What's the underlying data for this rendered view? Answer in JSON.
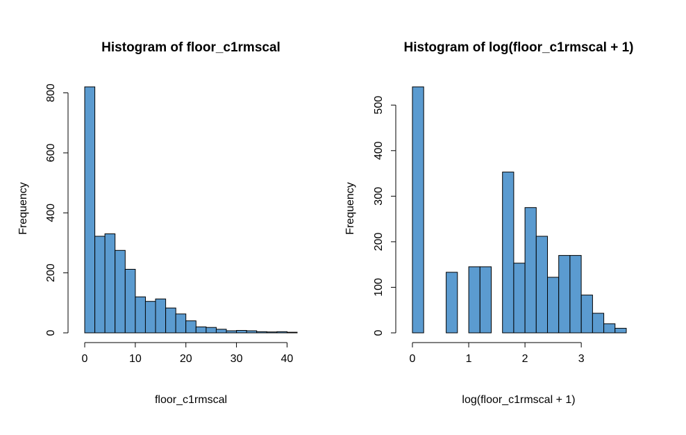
{
  "chart_data": [
    {
      "type": "bar",
      "title": "Histogram of floor_c1rmscal",
      "xlabel": "floor_c1rmscal",
      "ylabel": "Frequency",
      "bin_edges": [
        0,
        2,
        4,
        6,
        8,
        10,
        12,
        14,
        16,
        18,
        20,
        22,
        24,
        26,
        28,
        30,
        32,
        34,
        36,
        38,
        40,
        42
      ],
      "values": [
        820,
        322,
        330,
        275,
        212,
        120,
        105,
        113,
        83,
        63,
        40,
        20,
        18,
        12,
        7,
        8,
        7,
        4,
        3,
        4,
        2
      ],
      "xlim": [
        0,
        42
      ],
      "ylim": [
        0,
        820
      ],
      "x_ticks": [
        0,
        10,
        20,
        30,
        40
      ],
      "x_tick_labels": [
        "0",
        "10",
        "20",
        "30",
        "40"
      ],
      "y_ticks": [
        0,
        200,
        400,
        600,
        800
      ],
      "y_tick_labels": [
        "0",
        "200",
        "400",
        "600",
        "800"
      ],
      "bar_color": "#5b9bd0",
      "grid": false
    },
    {
      "type": "bar",
      "title": "Histogram of log(floor_c1rmscal + 1)",
      "xlabel": "log(floor_c1rmscal + 1)",
      "ylabel": "Frequency",
      "bin_edges": [
        0,
        0.2,
        0.4,
        0.6,
        0.8,
        1.0,
        1.2,
        1.4,
        1.6,
        1.8,
        2.0,
        2.2,
        2.4,
        2.6,
        2.8,
        3.0,
        3.2,
        3.4,
        3.6,
        3.8
      ],
      "values": [
        540,
        0,
        0,
        133,
        0,
        145,
        145,
        0,
        353,
        153,
        275,
        212,
        122,
        170,
        170,
        83,
        43,
        20,
        10
      ],
      "xlim": [
        0,
        3.8
      ],
      "ylim": [
        0,
        540
      ],
      "x_ticks": [
        0,
        1,
        2,
        3
      ],
      "x_tick_labels": [
        "0",
        "1",
        "2",
        "3"
      ],
      "y_ticks": [
        0,
        100,
        200,
        300,
        400,
        500
      ],
      "y_tick_labels": [
        "0",
        "100",
        "200",
        "300",
        "400",
        "500"
      ],
      "bar_color": "#5b9bd0",
      "grid": false
    }
  ]
}
